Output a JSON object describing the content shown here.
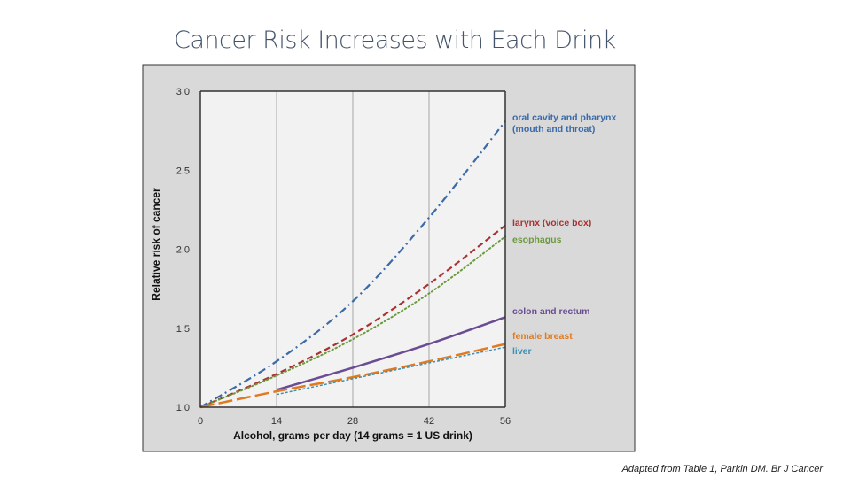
{
  "slide": {
    "title": "Cancer Risk Increases with Each Drink",
    "citation": "Adapted from Table 1, Parkin DM. Br J Cancer"
  },
  "chart_data": {
    "type": "line",
    "title": "Cancer Risk Increases with Each Drink",
    "xlabel": "Alcohol, grams per day (14 grams = 1 US drink)",
    "ylabel": "Relative risk of cancer",
    "xlim": [
      0,
      56
    ],
    "ylim": [
      1.0,
      3.0
    ],
    "x_ticks": [
      "0",
      "14",
      "28",
      "42",
      "56"
    ],
    "y_ticks": [
      "1.0",
      "1.5",
      "2.0",
      "2.5",
      "3.0"
    ],
    "grid": "vertical",
    "series": [
      {
        "name": "oral cavity and pharynx",
        "label_lines": [
          "oral cavity and pharynx",
          "(mouth and throat)"
        ],
        "color": "#3a6aa8",
        "style": "dashdot",
        "x": [
          0,
          14,
          28,
          42,
          56
        ],
        "y": [
          1.0,
          1.29,
          1.67,
          2.2,
          2.81
        ]
      },
      {
        "name": "larynx (voice box)",
        "label_lines": [
          "larynx (voice box)"
        ],
        "color": "#a83232",
        "style": "dashed",
        "x": [
          0,
          14,
          28,
          42,
          56
        ],
        "y": [
          1.0,
          1.21,
          1.46,
          1.78,
          2.15
        ]
      },
      {
        "name": "esophagus",
        "label_lines": [
          "esophagus"
        ],
        "color": "#6b9a3b",
        "style": "dotted",
        "x": [
          0,
          14,
          28,
          42,
          56
        ],
        "y": [
          1.0,
          1.2,
          1.43,
          1.72,
          2.08
        ]
      },
      {
        "name": "colon and rectum",
        "label_lines": [
          "colon and rectum"
        ],
        "color": "#6a4c93",
        "style": "solid",
        "x": [
          14,
          28,
          42,
          56
        ],
        "y": [
          1.11,
          1.25,
          1.4,
          1.57
        ]
      },
      {
        "name": "female breast",
        "label_lines": [
          "female breast"
        ],
        "color": "#e07a20",
        "style": "longdash",
        "x": [
          0,
          14,
          28,
          42,
          56
        ],
        "y": [
          1.0,
          1.1,
          1.19,
          1.29,
          1.4
        ]
      },
      {
        "name": "liver",
        "label_lines": [
          "liver"
        ],
        "color": "#3e8fb0",
        "style": "fine",
        "x": [
          14,
          28,
          42,
          56
        ],
        "y": [
          1.08,
          1.18,
          1.28,
          1.38
        ]
      }
    ]
  }
}
